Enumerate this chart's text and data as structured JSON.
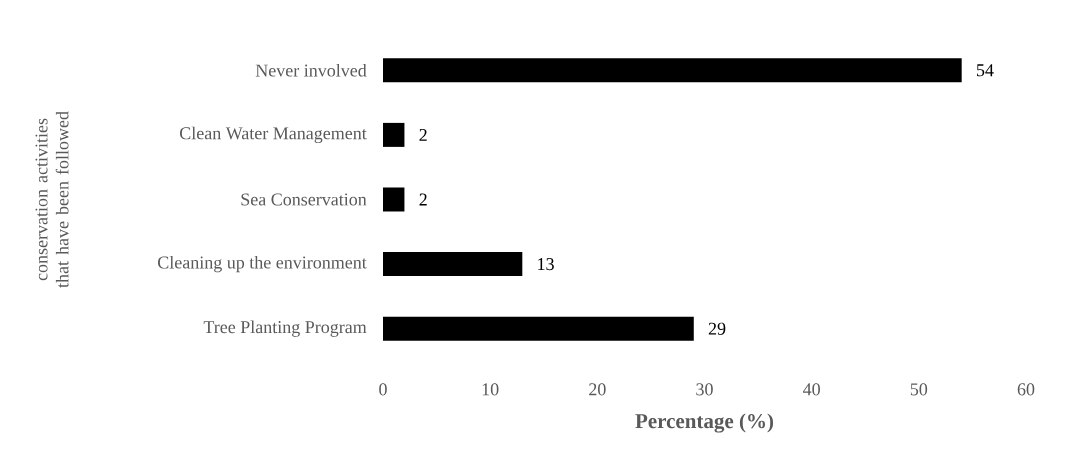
{
  "chart_data": {
    "type": "bar",
    "orientation": "horizontal",
    "categories": [
      "Never involved",
      "Clean Water Management",
      "Sea Conservation",
      "Cleaning up the environment",
      "Tree Planting Program"
    ],
    "values": [
      54,
      2,
      2,
      13,
      29
    ],
    "color": "#000000",
    "xlabel": "Percentage (%)",
    "ylabel": "conservation activities that have been followed",
    "xlim": [
      0,
      60
    ],
    "xticks": [
      0,
      10,
      20,
      30,
      40,
      50,
      60
    ],
    "data_labels": true
  }
}
